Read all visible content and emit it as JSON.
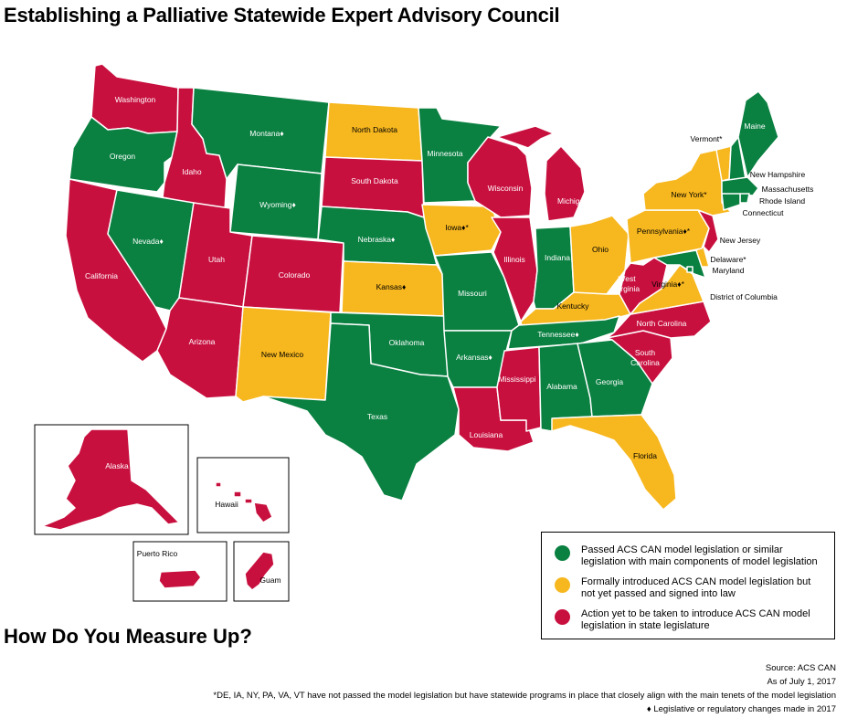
{
  "title": "Establishing a Palliative Statewide Expert Advisory Council",
  "subtitle": "How Do You Measure Up?",
  "colors": {
    "passed": "#0a8041",
    "introduced": "#f7b71e",
    "not_yet": "#c8103f"
  },
  "legend": [
    {
      "status": "passed",
      "text": "Passed ACS CAN model legislation or similar legislation with main components of model legislation"
    },
    {
      "status": "introduced",
      "text": "Formally introduced ACS CAN model legislation but not yet passed and signed into law"
    },
    {
      "status": "not_yet",
      "text": "Action yet to be taken to introduce ACS CAN model legislation in state legislature"
    }
  ],
  "states": {
    "washington": {
      "label": "Washington",
      "status": "not_yet"
    },
    "oregon": {
      "label": "Oregon",
      "status": "passed"
    },
    "california": {
      "label": "California",
      "status": "not_yet"
    },
    "idaho": {
      "label": "Idaho",
      "status": "not_yet"
    },
    "nevada": {
      "label": "Nevada♦",
      "status": "passed"
    },
    "montana": {
      "label": "Montana♦",
      "status": "passed"
    },
    "wyoming": {
      "label": "Wyoming♦",
      "status": "passed"
    },
    "utah": {
      "label": "Utah",
      "status": "not_yet"
    },
    "arizona": {
      "label": "Arizona",
      "status": "not_yet"
    },
    "colorado": {
      "label": "Colorado",
      "status": "not_yet"
    },
    "new_mexico": {
      "label": "New Mexico",
      "status": "introduced"
    },
    "north_dakota": {
      "label": "North Dakota",
      "status": "introduced"
    },
    "south_dakota": {
      "label": "South Dakota",
      "status": "not_yet"
    },
    "nebraska": {
      "label": "Nebraska♦",
      "status": "passed"
    },
    "kansas": {
      "label": "Kansas♦",
      "status": "introduced"
    },
    "oklahoma": {
      "label": "Oklahoma",
      "status": "passed"
    },
    "texas": {
      "label": "Texas",
      "status": "passed"
    },
    "minnesota": {
      "label": "Minnesota",
      "status": "passed"
    },
    "iowa": {
      "label": "Iowa♦*",
      "status": "introduced"
    },
    "missouri": {
      "label": "Missouri",
      "status": "passed"
    },
    "arkansas": {
      "label": "Arkansas♦",
      "status": "passed"
    },
    "louisiana": {
      "label": "Louisiana",
      "status": "not_yet"
    },
    "wisconsin": {
      "label": "Wisconsin",
      "status": "not_yet"
    },
    "illinois": {
      "label": "Illinois",
      "status": "not_yet"
    },
    "michigan": {
      "label": "Michigan",
      "status": "not_yet"
    },
    "indiana": {
      "label": "Indiana",
      "status": "passed"
    },
    "ohio": {
      "label": "Ohio",
      "status": "introduced"
    },
    "kentucky": {
      "label": "Kentucky",
      "status": "introduced"
    },
    "tennessee": {
      "label": "Tennessee♦",
      "status": "passed"
    },
    "mississippi": {
      "label": "Mississippi",
      "status": "not_yet"
    },
    "alabama": {
      "label": "Alabama",
      "status": "passed"
    },
    "georgia": {
      "label": "Georgia",
      "status": "passed"
    },
    "florida": {
      "label": "Florida",
      "status": "introduced"
    },
    "south_carolina": {
      "label": "South Carolina",
      "status": "not_yet"
    },
    "north_carolina": {
      "label": "North Carolina",
      "status": "not_yet"
    },
    "virginia": {
      "label": "Virginia♦*",
      "status": "introduced"
    },
    "west_virginia": {
      "label": "West Virginia",
      "status": "not_yet"
    },
    "pennsylvania": {
      "label": "Pennsylvania♦*",
      "status": "introduced"
    },
    "new_york": {
      "label": "New York*",
      "status": "introduced"
    },
    "vermont": {
      "label": "Vermont*",
      "status": "introduced"
    },
    "new_hampshire": {
      "label": "New Hampshire",
      "status": "passed"
    },
    "maine": {
      "label": "Maine",
      "status": "passed"
    },
    "massachusetts": {
      "label": "Massachusetts",
      "status": "passed"
    },
    "rhode_island": {
      "label": "Rhode Island",
      "status": "passed"
    },
    "connecticut": {
      "label": "Connecticut",
      "status": "passed"
    },
    "new_jersey": {
      "label": "New Jersey",
      "status": "not_yet"
    },
    "delaware": {
      "label": "Delaware*",
      "status": "introduced"
    },
    "maryland": {
      "label": "Maryland",
      "status": "passed"
    },
    "district_of_columbia": {
      "label": "District of Columbia",
      "status": "passed"
    },
    "alaska": {
      "label": "Alaska",
      "status": "not_yet"
    },
    "hawaii": {
      "label": "Hawaii",
      "status": "not_yet"
    },
    "puerto_rico": {
      "label": "Puerto Rico",
      "status": "not_yet"
    },
    "guam": {
      "label": "Guam",
      "status": "not_yet"
    }
  },
  "source": {
    "line1": "Source: ACS CAN",
    "line2": "As of July 1, 2017",
    "line3": "*DE, IA, NY, PA, VA, VT have not passed the model legislation but have statewide programs in place that closely align with the main tenets of the model legislation",
    "line4": "♦ Legislative or regulatory changes made in 2017"
  }
}
